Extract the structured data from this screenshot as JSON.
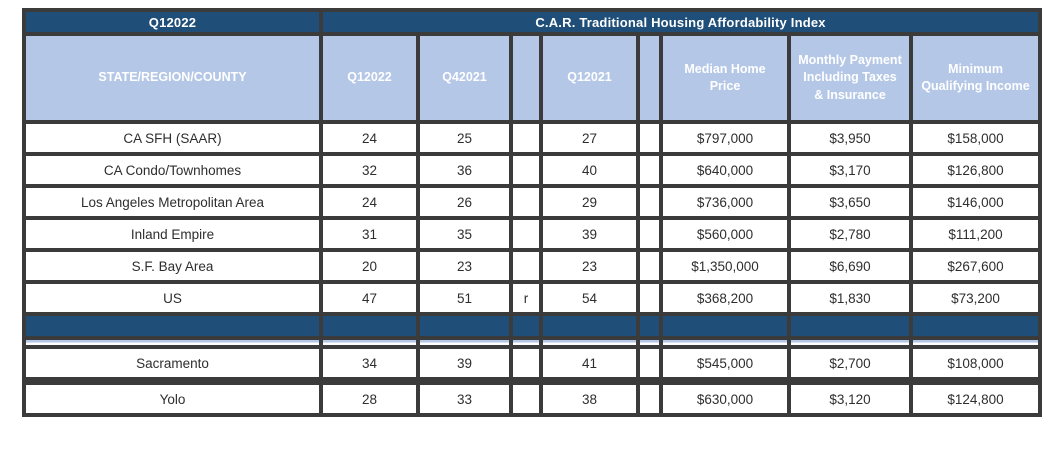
{
  "colors": {
    "dark_blue": "#1f4e79",
    "light_blue": "#b4c7e7",
    "border": "#3b3b3b",
    "data_text": "#2e2e2e",
    "header_text": "#ffffff"
  },
  "table": {
    "corner_label": "Q12022",
    "title": "C.A.R. Traditional Housing Affordability Index",
    "columns": [
      "STATE/REGION/COUNTY",
      "Q12022",
      "Q42021",
      "",
      "Q12021",
      "",
      "Median Home Price",
      "Monthly Payment Including Taxes & Insurance",
      "Minimum Qualifying Income"
    ],
    "rows": [
      {
        "type": "data",
        "region": "CA SFH (SAAR)",
        "values": [
          "24",
          "25",
          "",
          "27",
          "",
          "$797,000",
          "$3,950",
          "$158,000"
        ]
      },
      {
        "type": "data",
        "region": "CA Condo/Townhomes",
        "values": [
          "32",
          "36",
          "",
          "40",
          "",
          "$640,000",
          "$3,170",
          "$126,800"
        ]
      },
      {
        "type": "data",
        "region": "Los Angeles Metropolitan Area",
        "values": [
          "24",
          "26",
          "",
          "29",
          "",
          "$736,000",
          "$3,650",
          "$146,000"
        ]
      },
      {
        "type": "data",
        "region": "Inland Empire",
        "values": [
          "31",
          "35",
          "",
          "39",
          "",
          "$560,000",
          "$2,780",
          "$111,200"
        ]
      },
      {
        "type": "data",
        "region": "S.F. Bay Area",
        "values": [
          "20",
          "23",
          "",
          "23",
          "",
          "$1,350,000",
          "$6,690",
          "$267,600"
        ]
      },
      {
        "type": "data",
        "region": "US",
        "values": [
          "47",
          "51",
          "r",
          "54",
          "",
          "$368,200",
          "$1,830",
          "$73,200"
        ]
      },
      {
        "type": "sep"
      },
      {
        "type": "accent"
      },
      {
        "type": "data",
        "region": "Sacramento",
        "values": [
          "34",
          "39",
          "",
          "41",
          "",
          "$545,000",
          "$2,700",
          "$108,000"
        ]
      },
      {
        "type": "spacer"
      },
      {
        "type": "data",
        "region": "Yolo",
        "values": [
          "28",
          "33",
          "",
          "38",
          "",
          "$630,000",
          "$3,120",
          "$124,800"
        ]
      }
    ]
  }
}
